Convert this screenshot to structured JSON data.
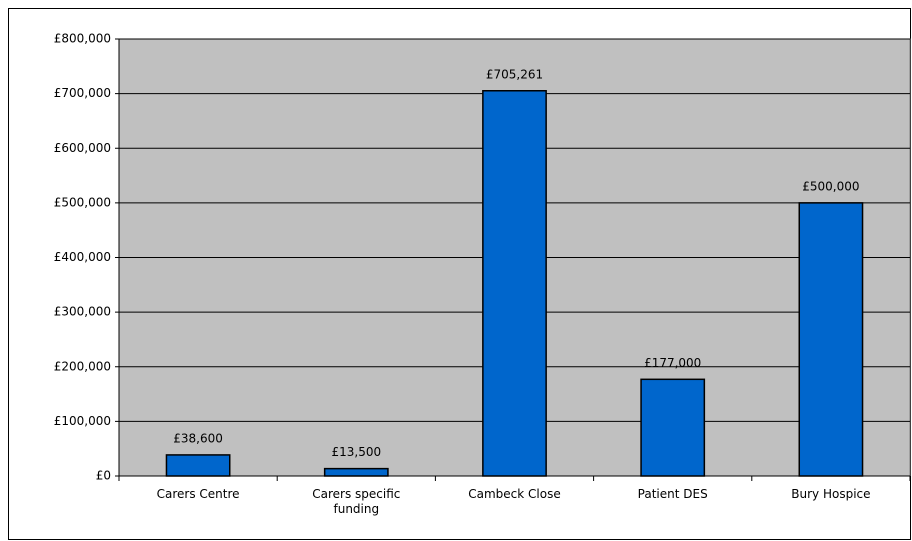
{
  "chart_data": {
    "type": "bar",
    "categories": [
      "Carers Centre",
      "Carers specific funding",
      "Cambeck Close",
      "Patient DES",
      "Bury Hospice"
    ],
    "values": [
      38600,
      13500,
      705261,
      177000,
      500000
    ],
    "value_labels": [
      "£38,600",
      "£13,500",
      "£705,261",
      "£177,000",
      "£500,000"
    ],
    "color": "#0066cc",
    "ylim": [
      0,
      800000
    ],
    "yticks": [
      {
        "value": 0,
        "label": "£0"
      },
      {
        "value": 100000,
        "label": "£100,000"
      },
      {
        "value": 200000,
        "label": "£200,000"
      },
      {
        "value": 300000,
        "label": "£300,000"
      },
      {
        "value": 400000,
        "label": "£400,000"
      },
      {
        "value": 500000,
        "label": "£500,000"
      },
      {
        "value": 600000,
        "label": "£600,000"
      },
      {
        "value": 700000,
        "label": "£700,000"
      },
      {
        "value": 800000,
        "label": "£800,000"
      }
    ],
    "grid": true
  }
}
